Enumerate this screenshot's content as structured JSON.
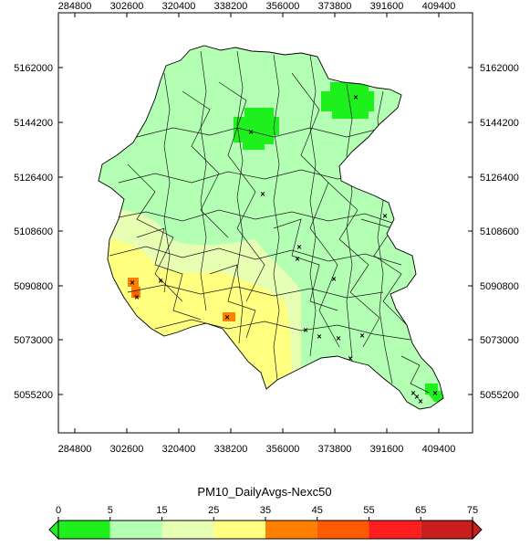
{
  "map": {
    "title": "PM10_DailyAvgs-Nexc50",
    "x_ticks": [
      "284800",
      "302600",
      "320400",
      "338200",
      "356000",
      "373800",
      "391600",
      "409400"
    ],
    "y_ticks": [
      "5162000",
      "5144200",
      "5126400",
      "5108600",
      "5090800",
      "5073000",
      "5055200"
    ],
    "background_color": "#ffffff",
    "region_base_color": "#b3ffb3",
    "marker_symbol": "×"
  },
  "legend": {
    "bounds": [
      "0",
      "5",
      "15",
      "25",
      "35",
      "45",
      "55",
      "65",
      "75"
    ],
    "colors": [
      "#1ef01e",
      "#b3ffb3",
      "#e6ffb3",
      "#ffff80",
      "#ff7f00",
      "#ff5a00",
      "#ff1e1e",
      "#c81e1e"
    ]
  }
}
